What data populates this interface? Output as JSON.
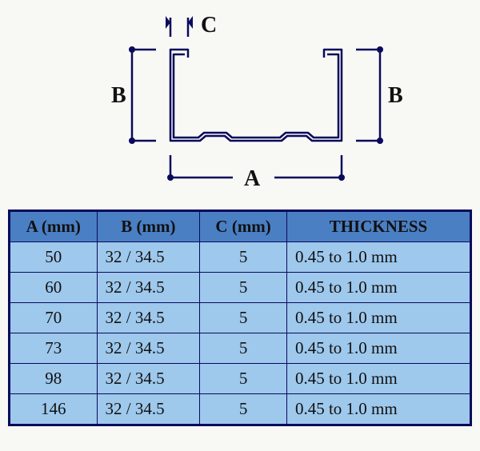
{
  "diagram": {
    "labels": {
      "A": "A",
      "B": "B",
      "C": "C"
    },
    "profile_color": "#0a0a5c",
    "dim_color": "#0a0a5c",
    "line_width": 2.5,
    "dot_radius": 4
  },
  "table": {
    "header_bg": "#4a7fc4",
    "row_bg": "#9ec8ec",
    "border_color": "#0a0a5c",
    "row_border_width": 1,
    "outer_border_width": 3,
    "columns": [
      {
        "key": "a",
        "label": "A (mm)",
        "width": "18%"
      },
      {
        "key": "b",
        "label": "B (mm)",
        "width": "22%"
      },
      {
        "key": "c",
        "label": "C (mm)",
        "width": "18%"
      },
      {
        "key": "t",
        "label": "THICKNESS",
        "width": "42%"
      }
    ],
    "rows": [
      {
        "a": "50",
        "b": "32 / 34.5",
        "c": "5",
        "t": "0.45 to 1.0 mm"
      },
      {
        "a": "60",
        "b": "32 / 34.5",
        "c": "5",
        "t": "0.45 to 1.0 mm"
      },
      {
        "a": "70",
        "b": "32 / 34.5",
        "c": "5",
        "t": "0.45 to 1.0 mm"
      },
      {
        "a": "73",
        "b": "32 / 34.5",
        "c": "5",
        "t": "0.45 to 1.0 mm"
      },
      {
        "a": "98",
        "b": "32 / 34.5",
        "c": "5",
        "t": "0.45 to 1.0 mm"
      },
      {
        "a": "146",
        "b": "32 / 34.5",
        "c": "5",
        "t": "0.45 to 1.0 mm"
      }
    ]
  }
}
